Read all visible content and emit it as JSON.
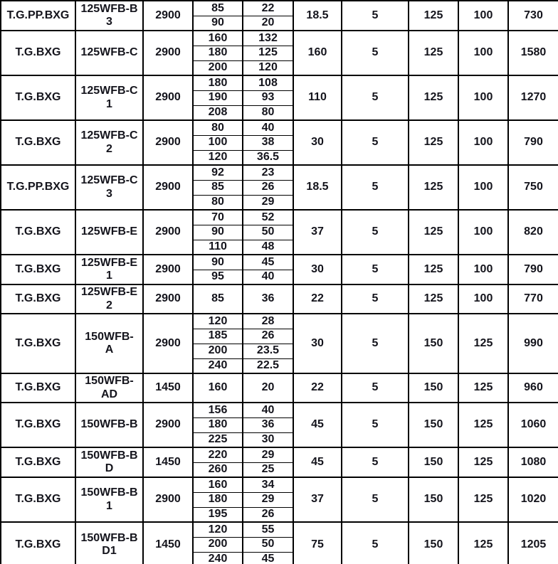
{
  "colors": {
    "border": "#000000",
    "text": "#14141c",
    "background": "#ffffff"
  },
  "table": {
    "column_keys": [
      "series",
      "model",
      "speed",
      "flow",
      "head",
      "power",
      "col7",
      "inlet",
      "outlet",
      "weight"
    ],
    "groups": [
      {
        "series": "T.G.PP.BXG",
        "model": "125WFB-B\n3",
        "speed": "2900",
        "duty_points": [
          {
            "flow": "85",
            "head": "22"
          },
          {
            "flow": "90",
            "head": "20"
          }
        ],
        "power": "18.5",
        "col7": "5",
        "inlet": "125",
        "outlet": "100",
        "weight": "730"
      },
      {
        "series": "T.G.BXG",
        "model": "125WFB-C",
        "speed": "2900",
        "duty_points": [
          {
            "flow": "160",
            "head": "132"
          },
          {
            "flow": "180",
            "head": "125"
          },
          {
            "flow": "200",
            "head": "120"
          }
        ],
        "power": "160",
        "col7": "5",
        "inlet": "125",
        "outlet": "100",
        "weight": "1580"
      },
      {
        "series": "T.G.BXG",
        "model": "125WFB-C\n1",
        "speed": "2900",
        "duty_points": [
          {
            "flow": "180",
            "head": "108"
          },
          {
            "flow": "190",
            "head": "93"
          },
          {
            "flow": "208",
            "head": "80"
          }
        ],
        "power": "110",
        "col7": "5",
        "inlet": "125",
        "outlet": "100",
        "weight": "1270"
      },
      {
        "series": "T.G.BXG",
        "model": "125WFB-C\n2",
        "speed": "2900",
        "duty_points": [
          {
            "flow": "80",
            "head": "40"
          },
          {
            "flow": "100",
            "head": "38"
          },
          {
            "flow": "120",
            "head": "36.5"
          }
        ],
        "power": "30",
        "col7": "5",
        "inlet": "125",
        "outlet": "100",
        "weight": "790"
      },
      {
        "series": "T.G.PP.BXG",
        "model": "125WFB-C\n3",
        "speed": "2900",
        "duty_points": [
          {
            "flow": "92",
            "head": "23"
          },
          {
            "flow": "85",
            "head": "26"
          },
          {
            "flow": "80",
            "head": "29"
          }
        ],
        "power": "18.5",
        "col7": "5",
        "inlet": "125",
        "outlet": "100",
        "weight": "750"
      },
      {
        "series": "T.G.BXG",
        "model": "125WFB-E",
        "speed": "2900",
        "duty_points": [
          {
            "flow": "70",
            "head": "52"
          },
          {
            "flow": "90",
            "head": "50"
          },
          {
            "flow": "110",
            "head": "48"
          }
        ],
        "power": "37",
        "col7": "5",
        "inlet": "125",
        "outlet": "100",
        "weight": "820"
      },
      {
        "series": "T.G.BXG",
        "model": "125WFB-E\n1",
        "speed": "2900",
        "duty_points": [
          {
            "flow": "90",
            "head": "45"
          },
          {
            "flow": "95",
            "head": "40"
          }
        ],
        "power": "30",
        "col7": "5",
        "inlet": "125",
        "outlet": "100",
        "weight": "790"
      },
      {
        "series": "T.G.BXG",
        "model": "125WFB-E\n2",
        "speed": "2900",
        "duty_points": [
          {
            "flow": "85",
            "head": "36"
          }
        ],
        "power": "22",
        "col7": "5",
        "inlet": "125",
        "outlet": "100",
        "weight": "770"
      },
      {
        "series": "T.G.BXG",
        "model": "150WFB-\nA",
        "speed": "2900",
        "duty_points": [
          {
            "flow": "120",
            "head": "28"
          },
          {
            "flow": "185",
            "head": "26"
          },
          {
            "flow": "200",
            "head": "23.5"
          },
          {
            "flow": "240",
            "head": "22.5"
          }
        ],
        "power": "30",
        "col7": "5",
        "inlet": "150",
        "outlet": "125",
        "weight": "990"
      },
      {
        "series": "T.G.BXG",
        "model": "150WFB-\nAD",
        "speed": "1450",
        "duty_points": [
          {
            "flow": "160",
            "head": "20"
          }
        ],
        "power": "22",
        "col7": "5",
        "inlet": "150",
        "outlet": "125",
        "weight": "960"
      },
      {
        "series": "T.G.BXG",
        "model": "150WFB-B",
        "speed": "2900",
        "duty_points": [
          {
            "flow": "156",
            "head": "40"
          },
          {
            "flow": "180",
            "head": "36"
          },
          {
            "flow": "225",
            "head": "30"
          }
        ],
        "power": "45",
        "col7": "5",
        "inlet": "150",
        "outlet": "125",
        "weight": "1060"
      },
      {
        "series": "T.G.BXG",
        "model": "150WFB-B\nD",
        "speed": "1450",
        "duty_points": [
          {
            "flow": "220",
            "head": "29"
          },
          {
            "flow": "260",
            "head": "25"
          }
        ],
        "power": "45",
        "col7": "5",
        "inlet": "150",
        "outlet": "125",
        "weight": "1080"
      },
      {
        "series": "T.G.BXG",
        "model": "150WFB-B\n1",
        "speed": "2900",
        "duty_points": [
          {
            "flow": "160",
            "head": "34"
          },
          {
            "flow": "180",
            "head": "29"
          },
          {
            "flow": "195",
            "head": "26"
          }
        ],
        "power": "37",
        "col7": "5",
        "inlet": "150",
        "outlet": "125",
        "weight": "1020"
      },
      {
        "series": "T.G.BXG",
        "model": "150WFB-B\nD1",
        "speed": "1450",
        "duty_points": [
          {
            "flow": "120",
            "head": "55"
          },
          {
            "flow": "200",
            "head": "50"
          },
          {
            "flow": "240",
            "head": "45"
          }
        ],
        "power": "75",
        "col7": "5",
        "inlet": "150",
        "outlet": "125",
        "weight": "1205"
      }
    ]
  }
}
